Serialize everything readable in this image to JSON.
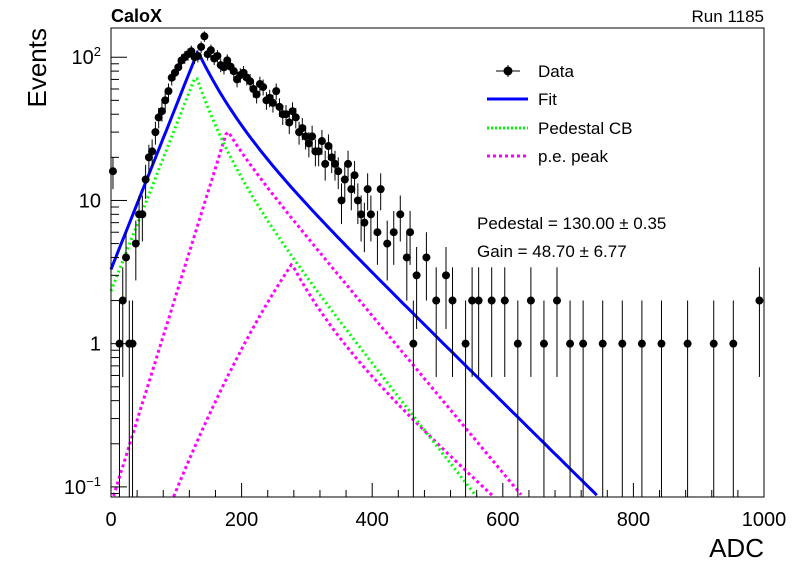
{
  "header": {
    "experiment": "CaloX",
    "run": "Run 1185"
  },
  "fit_results": {
    "pedestal": "Pedestal = 130.00 ± 0.35",
    "gain": "Gain = 48.70 ± 6.77"
  },
  "colors": {
    "data": "#000000",
    "fit": "#0000ff",
    "pedestal_cb": "#00ff00",
    "pe_peak": "#ff00ff"
  },
  "chart_data": {
    "type": "scatter",
    "title": "",
    "xlabel": "ADC",
    "ylabel": "Events",
    "xlim": [
      0,
      1000
    ],
    "ylim": [
      0.085,
      160
    ],
    "yscale": "log",
    "x_ticks": [
      "0",
      "200",
      "400",
      "600",
      "800",
      "1000"
    ],
    "y_ticks": [
      {
        "value": 0.1,
        "base": "10",
        "exp": "−1"
      },
      {
        "value": 1,
        "base": "1",
        "exp": ""
      },
      {
        "value": 10,
        "base": "10",
        "exp": ""
      },
      {
        "value": 100,
        "base": "10",
        "exp": "2"
      }
    ],
    "legend": {
      "placement": "top-right",
      "entries": [
        {
          "key": "data",
          "label": "Data"
        },
        {
          "key": "fit",
          "label": "Fit"
        },
        {
          "key": "pedestal_cb",
          "label": "Pedestal CB"
        },
        {
          "key": "pe_peak",
          "label": "p.e. peak"
        }
      ]
    },
    "data_points": {
      "x": [
        3,
        13,
        18,
        23,
        28,
        33,
        38,
        43,
        48,
        53,
        58,
        63,
        68,
        73,
        78,
        83,
        88,
        93,
        98,
        103,
        108,
        113,
        118,
        123,
        128,
        133,
        138,
        143,
        148,
        153,
        158,
        163,
        168,
        173,
        178,
        183,
        188,
        193,
        198,
        203,
        208,
        213,
        218,
        223,
        228,
        233,
        238,
        243,
        248,
        253,
        258,
        263,
        268,
        273,
        278,
        283,
        288,
        293,
        298,
        303,
        308,
        313,
        318,
        323,
        328,
        333,
        338,
        343,
        348,
        353,
        358,
        363,
        368,
        373,
        378,
        383,
        388,
        393,
        398,
        408,
        413,
        423,
        433,
        443,
        453,
        458,
        463,
        468,
        483,
        498,
        513,
        523,
        543,
        553,
        563,
        583,
        603,
        623,
        643,
        663,
        683,
        703,
        723,
        753,
        783,
        813,
        843,
        883,
        923,
        953,
        993
      ],
      "y": [
        16,
        1,
        2,
        4,
        1,
        1,
        5,
        8,
        8,
        14,
        20,
        22,
        30,
        38,
        42,
        50,
        58,
        72,
        78,
        85,
        95,
        100,
        105,
        110,
        100,
        102,
        118,
        140,
        105,
        112,
        98,
        102,
        88,
        85,
        95,
        86,
        80,
        70,
        75,
        78,
        72,
        68,
        60,
        55,
        65,
        62,
        50,
        52,
        48,
        58,
        45,
        40,
        40,
        35,
        42,
        38,
        30,
        32,
        28,
        25,
        28,
        22,
        22,
        26,
        18,
        24,
        20,
        18,
        16,
        10,
        14,
        18,
        12,
        15,
        10,
        8,
        7,
        12,
        8,
        6,
        12,
        5,
        6,
        8,
        4,
        6,
        1,
        3,
        4,
        2,
        3,
        2,
        1,
        2,
        2,
        2,
        2,
        1,
        2,
        1,
        2,
        1,
        1,
        1,
        1,
        1,
        1,
        1,
        1,
        1,
        2
      ]
    },
    "models": {
      "fit": {
        "peak_x": 133,
        "peak_y": 110
      },
      "pedestal_cb": {
        "peak_x": 130,
        "peak_y": 75
      },
      "pe_peak_1": {
        "peak_x": 178,
        "peak_y": 31
      },
      "pe_peak_2": {
        "peak_x": 277,
        "peak_y": 3.6
      }
    }
  }
}
